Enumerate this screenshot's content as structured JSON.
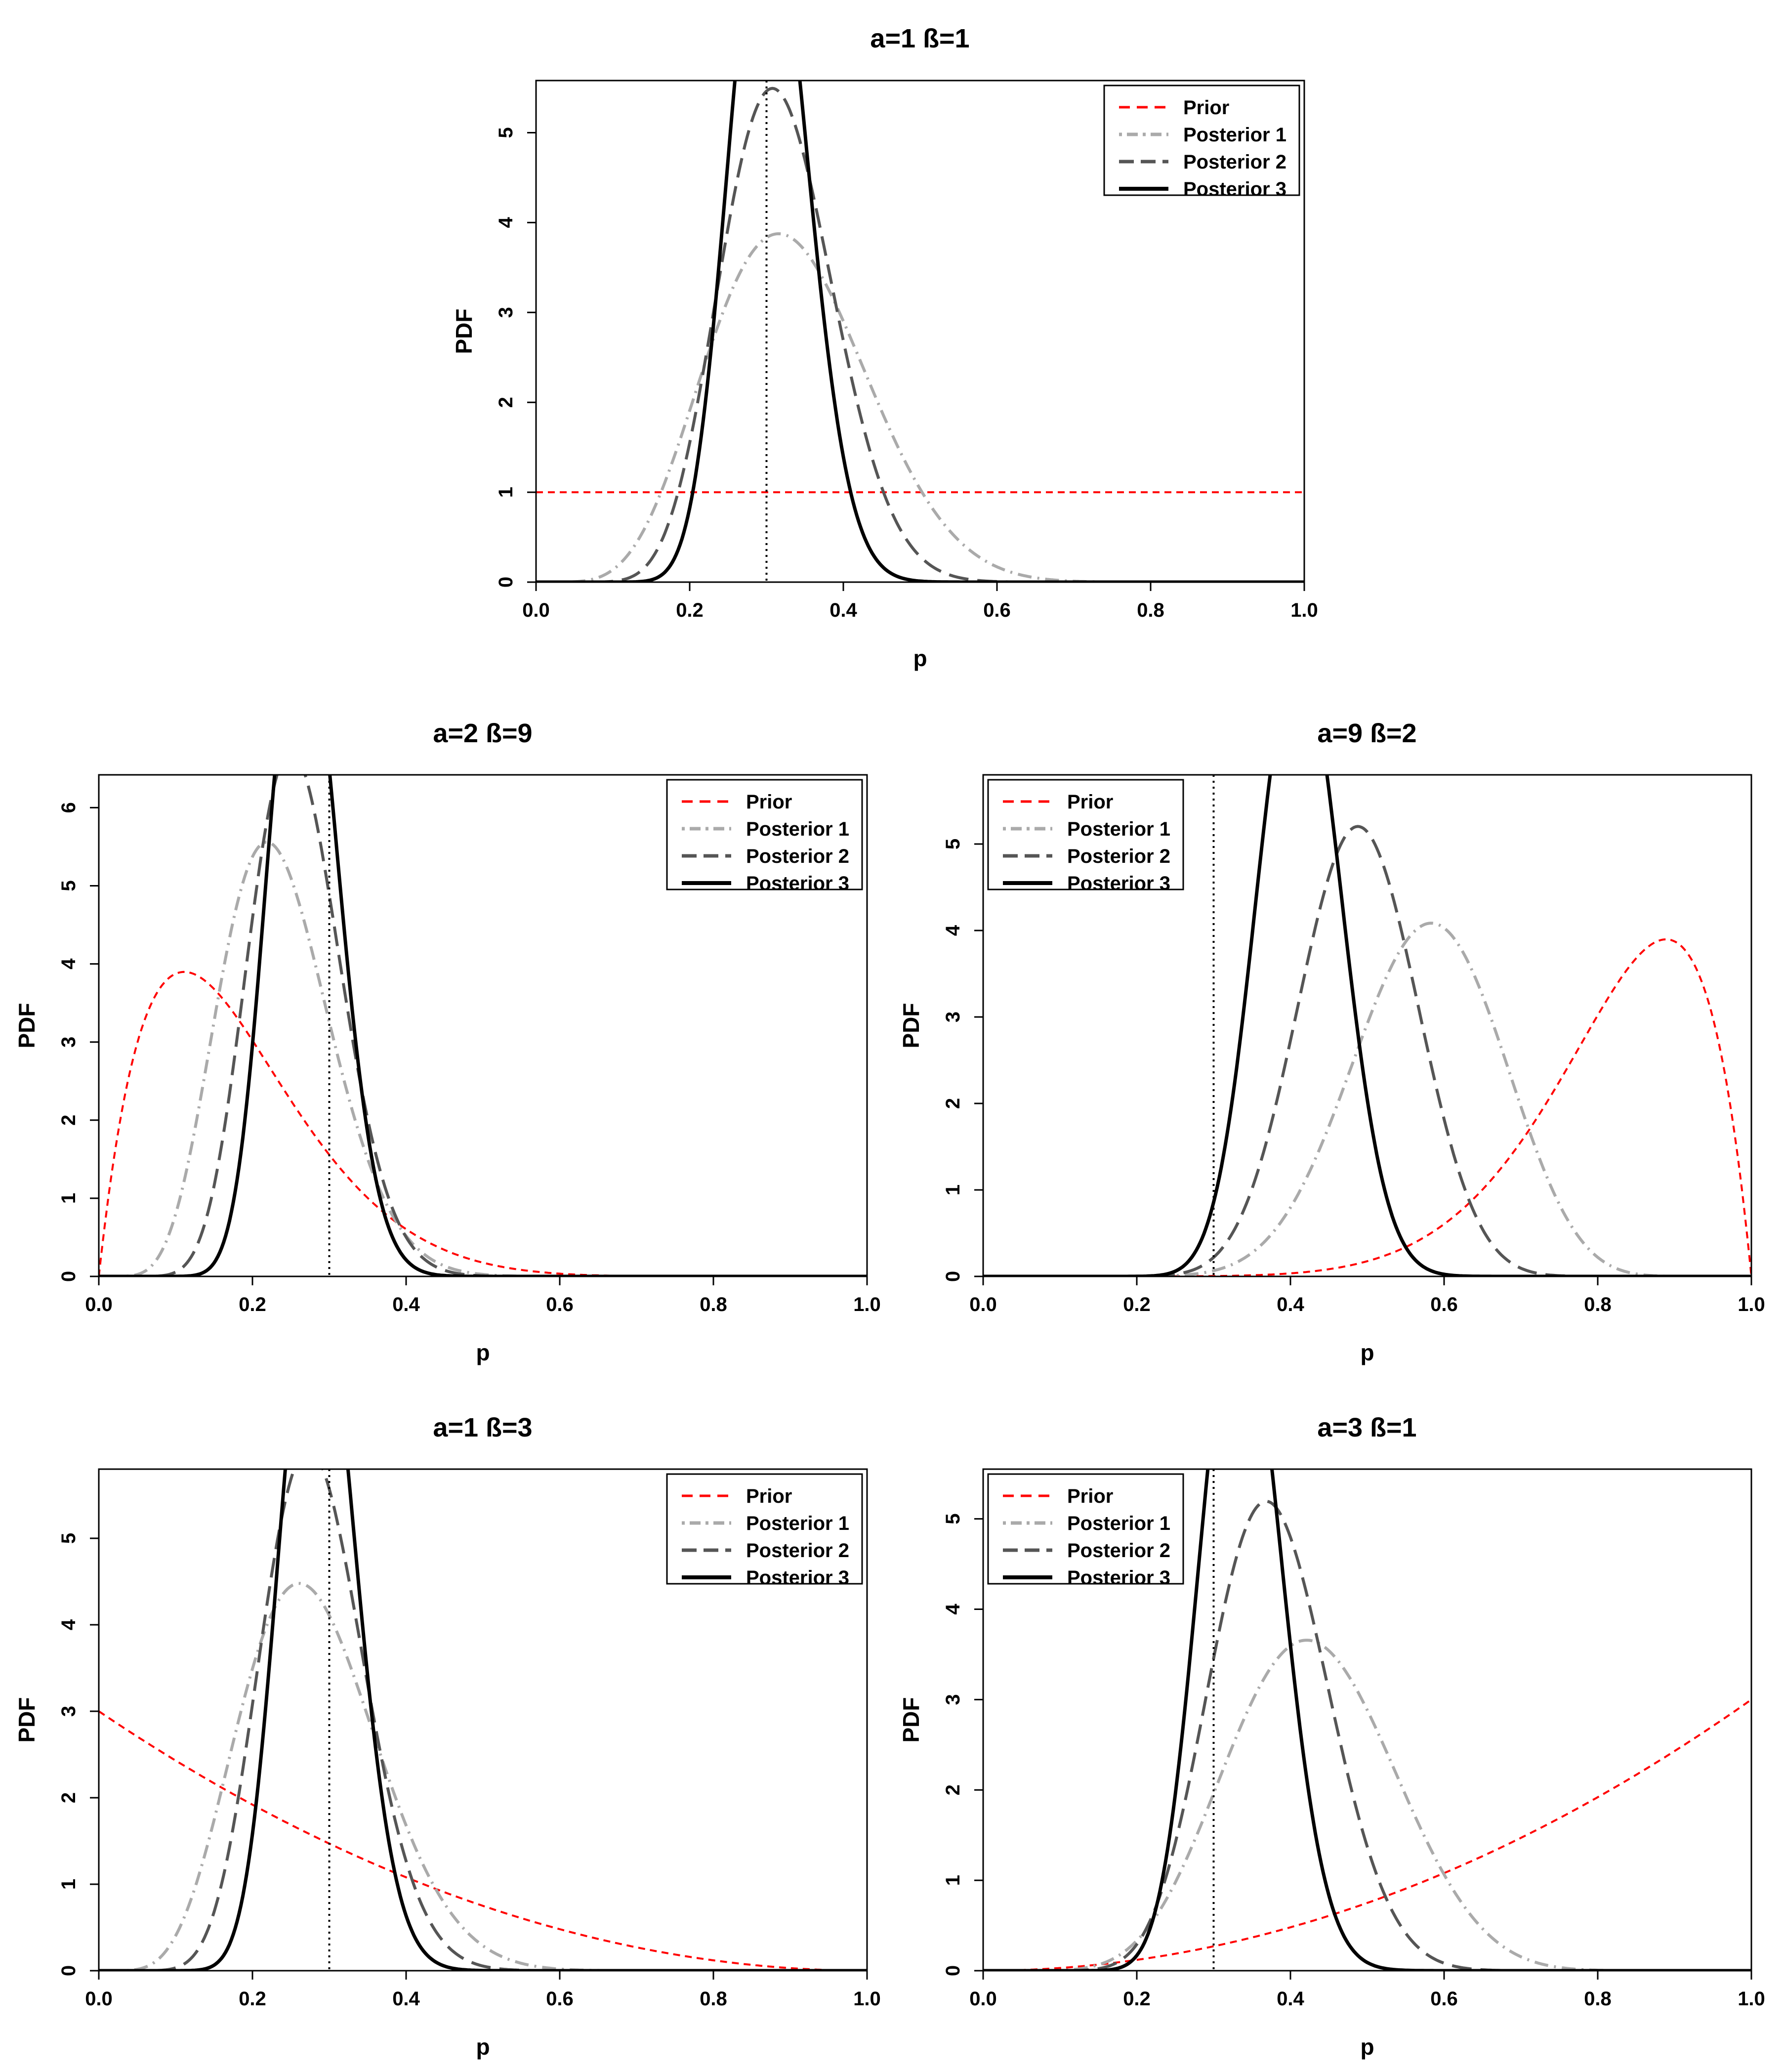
{
  "legend_labels": [
    "Prior",
    "Posterior 1",
    "Posterior 2",
    "Posterior 3"
  ],
  "series_style": {
    "prior": {
      "color": "#ff0000",
      "dash": "dashed"
    },
    "posterior1": {
      "color": "#aaaaaa",
      "dash": "dotdash"
    },
    "posterior2": {
      "color": "#555555",
      "dash": "longdash"
    },
    "posterior3": {
      "color": "#000000",
      "dash": "solid"
    }
  },
  "chart_data": [
    {
      "type": "line",
      "title": "a=1  ß=1",
      "xlabel": "p",
      "ylabel": "PDF",
      "xlim": [
        0,
        1
      ],
      "ylim": [
        0,
        5.58
      ],
      "xticks": [
        "0.0",
        "0.2",
        "0.4",
        "0.6",
        "0.8",
        "1.0"
      ],
      "yticks": [
        "0",
        "1",
        "2",
        "3",
        "4",
        "5"
      ],
      "reference_x": 0.3,
      "legend_position": "top-right",
      "series": [
        {
          "name": "Prior",
          "shape": [
            1,
            1
          ]
        },
        {
          "name": "Posterior 1",
          "shape": [
            7,
            14
          ]
        },
        {
          "name": "Posterior 2",
          "shape": [
            13,
            28
          ]
        },
        {
          "name": "Posterior 3",
          "shape": [
            25,
            57
          ]
        }
      ]
    },
    {
      "type": "line",
      "title": "a=2  ß=9",
      "xlabel": "p",
      "ylabel": "PDF",
      "xlim": [
        0,
        1
      ],
      "ylim": [
        0,
        6.42
      ],
      "xticks": [
        "0.0",
        "0.2",
        "0.4",
        "0.6",
        "0.8",
        "1.0"
      ],
      "yticks": [
        "0",
        "1",
        "2",
        "3",
        "4",
        "5",
        "6"
      ],
      "reference_x": 0.3,
      "legend_position": "top-right",
      "series": [
        {
          "name": "Prior",
          "shape": [
            2,
            9
          ]
        },
        {
          "name": "Posterior 1",
          "shape": [
            8,
            26
          ]
        },
        {
          "name": "Posterior 2",
          "shape": [
            14,
            40
          ]
        },
        {
          "name": "Posterior 3",
          "shape": [
            25,
            68
          ]
        }
      ]
    },
    {
      "type": "line",
      "title": "a=9  ß=2",
      "xlabel": "p",
      "ylabel": "PDF",
      "xlim": [
        0,
        1
      ],
      "ylim": [
        0,
        5.8
      ],
      "xticks": [
        "0.0",
        "0.2",
        "0.4",
        "0.6",
        "0.8",
        "1.0"
      ],
      "yticks": [
        "0",
        "1",
        "2",
        "3",
        "4",
        "5"
      ],
      "reference_x": 0.3,
      "legend_position": "top-left",
      "series": [
        {
          "name": "Prior",
          "shape": [
            9,
            2
          ]
        },
        {
          "name": "Posterior 1",
          "shape": [
            15,
            11
          ]
        },
        {
          "name": "Posterior 2",
          "shape": [
            21,
            22
          ]
        },
        {
          "name": "Posterior 3",
          "shape": [
            33,
            47
          ]
        }
      ]
    },
    {
      "type": "line",
      "title": "a=1  ß=3",
      "xlabel": "p",
      "ylabel": "PDF",
      "xlim": [
        0,
        1
      ],
      "ylim": [
        0,
        5.8
      ],
      "xticks": [
        "0.0",
        "0.2",
        "0.4",
        "0.6",
        "0.8",
        "1.0"
      ],
      "yticks": [
        "0",
        "1",
        "2",
        "3",
        "4",
        "5"
      ],
      "reference_x": 0.3,
      "legend_position": "top-right",
      "series": [
        {
          "name": "Prior",
          "shape": [
            1,
            3
          ]
        },
        {
          "name": "Posterior 1",
          "shape": [
            7,
            18
          ]
        },
        {
          "name": "Posterior 2",
          "shape": [
            13,
            33
          ]
        },
        {
          "name": "Posterior 3",
          "shape": [
            25,
            62
          ]
        }
      ]
    },
    {
      "type": "line",
      "title": "a=3  ß=1",
      "xlabel": "p",
      "ylabel": "PDF",
      "xlim": [
        0,
        1
      ],
      "ylim": [
        0,
        5.55
      ],
      "xticks": [
        "0.0",
        "0.2",
        "0.4",
        "0.6",
        "0.8",
        "1.0"
      ],
      "yticks": [
        "0",
        "1",
        "2",
        "3",
        "4",
        "5"
      ],
      "reference_x": 0.3,
      "legend_position": "top-left",
      "series": [
        {
          "name": "Prior",
          "shape": [
            3,
            1
          ]
        },
        {
          "name": "Posterior 1",
          "shape": [
            9,
            12
          ]
        },
        {
          "name": "Posterior 2",
          "shape": [
            15,
            25
          ]
        },
        {
          "name": "Posterior 3",
          "shape": [
            27,
            53
          ]
        }
      ]
    }
  ]
}
